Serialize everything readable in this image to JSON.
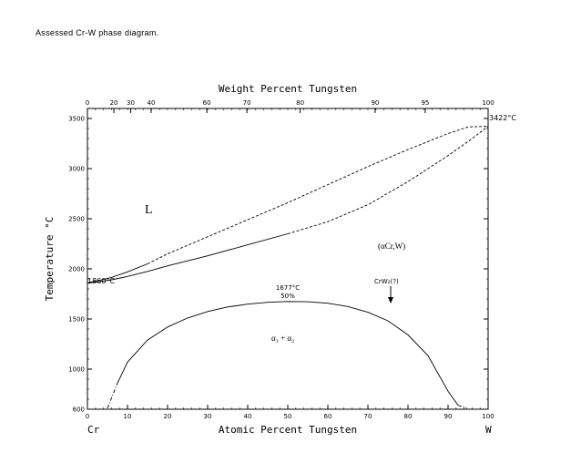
{
  "caption": "Assessed Cr-W  phase diagram.",
  "chart_data": {
    "type": "line",
    "title": "Assessed Cr-W phase diagram",
    "xlabel": "Atomic Percent Tungsten",
    "x2label": "Weight Percent Tungsten",
    "ylabel": "Temperature °C",
    "xlim": [
      0,
      100
    ],
    "ylim": [
      600,
      3600
    ],
    "x_ticks": [
      "0",
      "10",
      "20",
      "30",
      "40",
      "50",
      "60",
      "70",
      "80",
      "90",
      "100"
    ],
    "top_ticks": [
      {
        "wt": 0,
        "at": 0
      },
      {
        "wt": 20,
        "at": 6.6
      },
      {
        "wt": 30,
        "at": 10.8
      },
      {
        "wt": 40,
        "at": 15.9
      },
      {
        "wt": 60,
        "at": 29.8
      },
      {
        "wt": 70,
        "at": 39.8
      },
      {
        "wt": 80,
        "at": 53.1
      },
      {
        "wt": 90,
        "at": 71.8
      },
      {
        "wt": 95,
        "at": 84.3
      },
      {
        "wt": 100,
        "at": 100
      }
    ],
    "y_ticks": [
      "600",
      "1000",
      "1500",
      "2000",
      "2500",
      "3000",
      "3500"
    ],
    "element_left": "Cr",
    "element_right": "W",
    "series": [
      {
        "name": "liquidus",
        "style": "dashed",
        "x": [
          0,
          3,
          6,
          10,
          15,
          20,
          30,
          40,
          50,
          60,
          70,
          80,
          90,
          95,
          100
        ],
        "y": [
          1860,
          1885,
          1915,
          1970,
          2050,
          2150,
          2320,
          2490,
          2660,
          2840,
          3020,
          3190,
          3350,
          3415,
          3422
        ]
      },
      {
        "name": "solidus",
        "style": "solid+dashed",
        "x": [
          0,
          3,
          6,
          10,
          15,
          20,
          30,
          40,
          50,
          60,
          70,
          80,
          90,
          95,
          100
        ],
        "y": [
          1860,
          1872,
          1890,
          1925,
          1975,
          2030,
          2130,
          2240,
          2350,
          2470,
          2640,
          2870,
          3130,
          3270,
          3422
        ]
      },
      {
        "name": "miscibility gap",
        "style": "solid",
        "x": [
          7.5,
          10,
          15,
          20,
          25,
          30,
          35,
          40,
          45,
          50,
          55,
          60,
          65,
          70,
          75,
          80,
          85,
          90,
          92.5
        ],
        "y": [
          860,
          1070,
          1290,
          1420,
          1510,
          1575,
          1620,
          1648,
          1666,
          1675,
          1672,
          1657,
          1625,
          1567,
          1482,
          1342,
          1134,
          780,
          640
        ]
      },
      {
        "name": "miscibility gap (metastable)",
        "style": "dash-dot",
        "x": [
          5,
          7.5
        ],
        "y": [
          610,
          860
        ]
      },
      {
        "name": "miscibility gap (metastable, right)",
        "style": "dash-dot",
        "x": [
          92.5,
          94.7
        ],
        "y": [
          640,
          610
        ]
      }
    ],
    "annotations": {
      "L": "L",
      "alpha_phase": "(αCr,W)",
      "gap_region": "α₁ + α₂",
      "cr_melt": "1860°C",
      "w_melt": "3422°C",
      "crit_temp": "1677°C",
      "crit_comp": "50%",
      "crw2": "CrW₂(?)"
    }
  }
}
